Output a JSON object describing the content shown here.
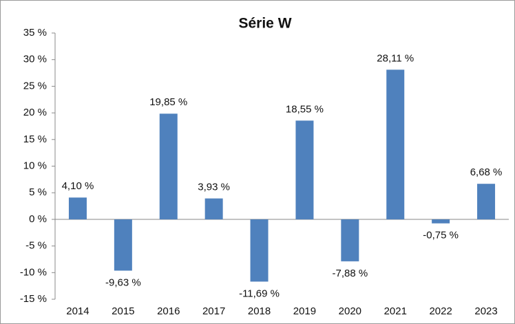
{
  "chart_data": {
    "type": "bar",
    "title": "Série W",
    "categories": [
      "2014",
      "2015",
      "2016",
      "2017",
      "2018",
      "2019",
      "2020",
      "2021",
      "2022",
      "2023"
    ],
    "values": [
      4.1,
      -9.63,
      19.85,
      3.93,
      -11.69,
      18.55,
      -7.88,
      28.11,
      -0.75,
      6.68
    ],
    "value_labels": [
      "4,10 %",
      "-9,63 %",
      "19,85 %",
      "3,93 %",
      "-11,69 %",
      "18,55 %",
      "-7,88 %",
      "28,11 %",
      "-0,75 %",
      "6,68 %"
    ],
    "color": "#4f81bd",
    "ylim": [
      -15,
      35
    ],
    "yticks": [
      {
        "value": -15,
        "label": "-15 %"
      },
      {
        "value": -10,
        "label": "-10 %"
      },
      {
        "value": -5,
        "label": "-5 %"
      },
      {
        "value": 0,
        "label": "0 %"
      },
      {
        "value": 5,
        "label": "5 %"
      },
      {
        "value": 10,
        "label": "10 %"
      },
      {
        "value": 15,
        "label": "15 %"
      },
      {
        "value": 20,
        "label": "20 %"
      },
      {
        "value": 25,
        "label": "25 %"
      },
      {
        "value": 30,
        "label": "30 %"
      },
      {
        "value": 35,
        "label": "35 %"
      }
    ],
    "grid": false
  }
}
